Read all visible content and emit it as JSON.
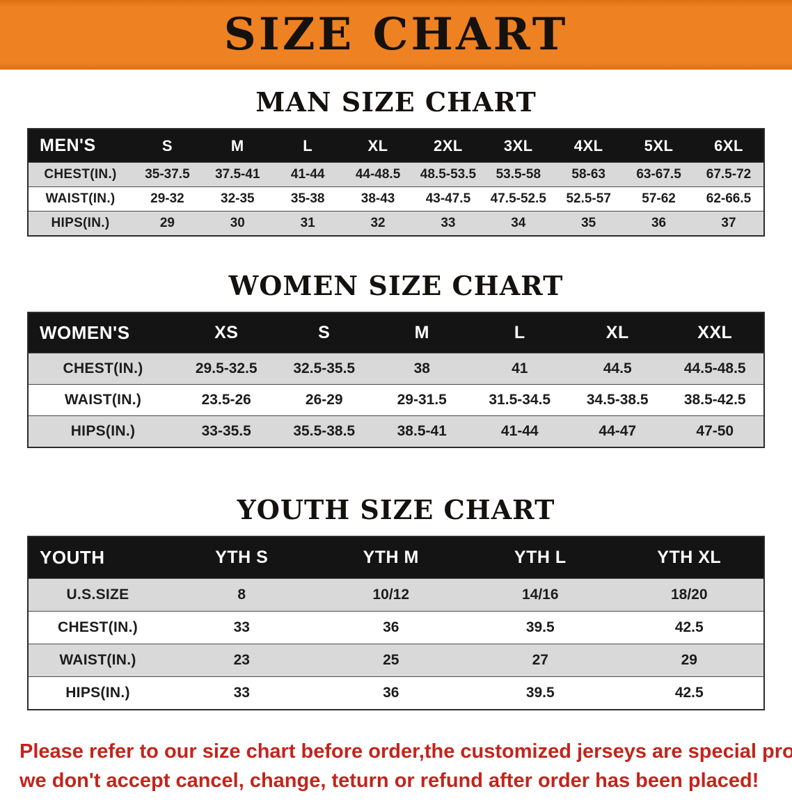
{
  "banner": {
    "title": "SIZE CHART",
    "bg_color": "#ee8122",
    "text_color": "#15110d"
  },
  "colors": {
    "table_header_bg": "#141414",
    "row_alt_gray": "#d9d9d9",
    "footer_red": "#c3241c"
  },
  "sections": [
    {
      "id": "men",
      "heading": "MAN SIZE CHART",
      "table": {
        "header": [
          "MEN'S",
          "S",
          "M",
          "L",
          "XL",
          "2XL",
          "3XL",
          "4XL",
          "5XL",
          "6XL"
        ],
        "rows": [
          {
            "label": "CHEST(IN.)",
            "values": [
              "35-37.5",
              "37.5-41",
              "41-44",
              "44-48.5",
              "48.5-53.5",
              "53.5-58",
              "58-63",
              "63-67.5",
              "67.5-72"
            ]
          },
          {
            "label": "WAIST(IN.)",
            "values": [
              "29-32",
              "32-35",
              "35-38",
              "38-43",
              "43-47.5",
              "47.5-52.5",
              "52.5-57",
              "57-62",
              "62-66.5"
            ]
          },
          {
            "label": "HIPS(IN.)",
            "values": [
              "29",
              "30",
              "31",
              "32",
              "33",
              "34",
              "35",
              "36",
              "37"
            ]
          }
        ]
      }
    },
    {
      "id": "women",
      "heading": "WOMEN SIZE CHART",
      "table": {
        "header": [
          "WOMEN'S",
          "XS",
          "S",
          "M",
          "L",
          "XL",
          "XXL"
        ],
        "rows": [
          {
            "label": "CHEST(IN.)",
            "values": [
              "29.5-32.5",
              "32.5-35.5",
              "38",
              "41",
              "44.5",
              "44.5-48.5"
            ]
          },
          {
            "label": "WAIST(IN.)",
            "values": [
              "23.5-26",
              "26-29",
              "29-31.5",
              "31.5-34.5",
              "34.5-38.5",
              "38.5-42.5"
            ]
          },
          {
            "label": "HIPS(IN.)",
            "values": [
              "33-35.5",
              "35.5-38.5",
              "38.5-41",
              "41-44",
              "44-47",
              "47-50"
            ]
          }
        ]
      }
    },
    {
      "id": "youth",
      "heading": "YOUTH SIZE CHART",
      "table": {
        "header": [
          "YOUTH",
          "YTH S",
          "YTH M",
          "YTH L",
          "YTH XL"
        ],
        "rows": [
          {
            "label": "U.S.SIZE",
            "values": [
              "8",
              "10/12",
              "14/16",
              "18/20"
            ]
          },
          {
            "label": "CHEST(IN.)",
            "values": [
              "33",
              "36",
              "39.5",
              "42.5"
            ]
          },
          {
            "label": "WAIST(IN.)",
            "values": [
              "23",
              "25",
              "27",
              "29"
            ]
          },
          {
            "label": "HIPS(IN.)",
            "values": [
              "33",
              "36",
              "39.5",
              "42.5"
            ]
          }
        ]
      }
    }
  ],
  "footer": {
    "line1": "Please refer to our size chart before order,the customized jerseys are special products,",
    "line2": "we don't accept cancel, change, teturn or refund after order has been placed!"
  }
}
